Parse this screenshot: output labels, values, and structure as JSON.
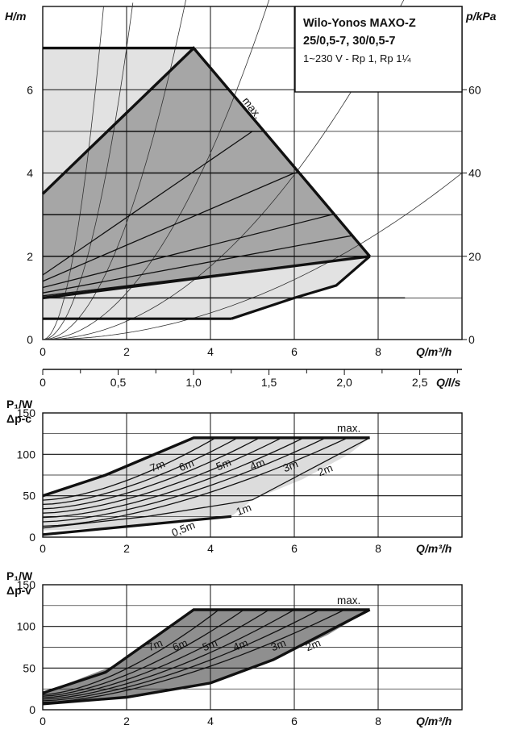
{
  "chart_data": [
    {
      "type": "area",
      "panel": "H-Q pump curves",
      "title": "Wilo-Yonos MAXO-Z",
      "title_line2": "25/0,5-7, 30/0,5-7",
      "subtitle": "1~230 V - Rp 1, Rp 1¼",
      "ylabel": "H/m",
      "ylabel_right": "p/kPa",
      "xlabel": "Q/m³/h",
      "xlim": [
        0,
        10
      ],
      "ylim": [
        0,
        8
      ],
      "x_ticks": [
        "0",
        "2",
        "4",
        "6",
        "8"
      ],
      "y_ticks": [
        "0",
        "2",
        "4",
        "6"
      ],
      "y_right_ticks": [
        "0",
        "20",
        "40",
        "60"
      ],
      "grid": true,
      "max_label": "max.",
      "regions": {
        "light": [
          [
            0,
            7
          ],
          [
            3.6,
            7
          ],
          [
            7.8,
            2
          ],
          [
            7.0,
            1.3
          ],
          [
            6.0,
            1.0
          ],
          [
            4.5,
            0.5
          ],
          [
            0,
            0.5
          ]
        ],
        "dark": [
          [
            0,
            3.5
          ],
          [
            3.6,
            7
          ],
          [
            7.8,
            2
          ],
          [
            0,
            1.0
          ]
        ]
      },
      "curves": {
        "max": [
          [
            0,
            3.5
          ],
          [
            3.6,
            7
          ],
          [
            7.8,
            2
          ]
        ],
        "lower_limit": [
          [
            0,
            1.0
          ],
          [
            7.8,
            2
          ]
        ],
        "min_line": [
          [
            0,
            0.5
          ],
          [
            4.5,
            0.5
          ]
        ],
        "dp_v_lines": [
          {
            "from": [
              0,
              1.55
            ],
            "to": [
              5.0,
              5.0
            ]
          },
          {
            "from": [
              0,
              1.4
            ],
            "to": [
              6.0,
              4.0
            ]
          },
          {
            "from": [
              0,
              1.25
            ],
            "to": [
              6.9,
              3.0
            ]
          },
          {
            "from": [
              0,
              1.12
            ],
            "to": [
              7.4,
              2.5
            ]
          },
          {
            "from": [
              0,
              1.05
            ],
            "to": [
              7.8,
              2.0
            ]
          }
        ],
        "dp_c_levels": [
          1,
          2,
          3,
          4,
          5,
          6
        ],
        "system_curve_k": [
          3.8,
          1.75,
          0.7,
          0.28,
          0.11,
          0.04
        ]
      }
    },
    {
      "type": "axis",
      "panel": "flow in l/s",
      "xlabel": "Q/l/s",
      "xlim": [
        0,
        2.78
      ],
      "x_ticks": [
        "0",
        "0,5",
        "1,0",
        "1,5",
        "2,0",
        "2,5"
      ]
    },
    {
      "type": "area",
      "panel": "P1 power, Δp-c",
      "ylabel": "P₁/W",
      "ylabel_line2": "Δp-c",
      "xlabel": "Q/m³/h",
      "xlim": [
        0,
        10
      ],
      "ylim": [
        0,
        150
      ],
      "x_ticks": [
        "0",
        "2",
        "4",
        "6",
        "8"
      ],
      "y_ticks": [
        "0",
        "50",
        "100",
        "150"
      ],
      "grid": true,
      "max_label": "max.",
      "curve_labels": [
        "7m",
        "6m",
        "5m",
        "4m",
        "3m",
        "2m",
        "1m",
        "0,5m"
      ],
      "region": [
        [
          0,
          50
        ],
        [
          1.8,
          80
        ],
        [
          3.6,
          120
        ],
        [
          7.8,
          120
        ],
        [
          7.3,
          100
        ],
        [
          6.2,
          70
        ],
        [
          5,
          45
        ],
        [
          4.5,
          25
        ],
        [
          2,
          12
        ],
        [
          0,
          8
        ]
      ],
      "curves": {
        "top": [
          [
            0,
            50
          ],
          [
            1.5,
            75
          ],
          [
            3.6,
            120
          ],
          [
            7.8,
            120
          ]
        ],
        "level_1m": [
          [
            0,
            11
          ],
          [
            2.5,
            25
          ],
          [
            5,
            45
          ],
          [
            7.8,
            120
          ]
        ],
        "level_0_5m": [
          [
            0,
            3
          ],
          [
            4.5,
            25
          ]
        ]
      }
    },
    {
      "type": "area",
      "panel": "P1 power, Δp-v",
      "ylabel": "P₁/W",
      "ylabel_line2": "Δp-v",
      "xlabel": "Q/m³/h",
      "xlim": [
        0,
        10
      ],
      "ylim": [
        0,
        150
      ],
      "x_ticks": [
        "0",
        "2",
        "4",
        "6",
        "8"
      ],
      "y_ticks": [
        "0",
        "50",
        "100",
        "150"
      ],
      "grid": true,
      "max_label": "max.",
      "curve_labels": [
        "7m",
        "6m",
        "5m",
        "4m",
        "3m",
        "2m"
      ],
      "region": [
        [
          0,
          20
        ],
        [
          1.8,
          55
        ],
        [
          3.6,
          120
        ],
        [
          7.8,
          120
        ],
        [
          6.8,
          90
        ],
        [
          5.5,
          60
        ],
        [
          4,
          32
        ],
        [
          2,
          15
        ],
        [
          0,
          7
        ]
      ],
      "curves": {
        "top": [
          [
            0,
            20
          ],
          [
            1.5,
            45
          ],
          [
            3.6,
            120
          ],
          [
            7.8,
            120
          ]
        ],
        "bottom": [
          [
            0,
            7
          ],
          [
            2,
            15
          ],
          [
            4,
            32
          ],
          [
            5.5,
            60
          ],
          [
            7.8,
            120
          ]
        ]
      }
    }
  ]
}
